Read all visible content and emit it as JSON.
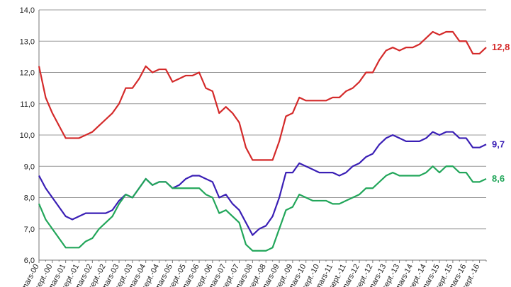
{
  "chart_data": {
    "type": "line",
    "categories": [
      "mars-00",
      null,
      "sept.-00",
      null,
      "mars-01",
      null,
      "sept.-01",
      null,
      "mars-02",
      null,
      "sept.-02",
      null,
      "mars-03",
      null,
      "sept.-03",
      null,
      "mars-04",
      null,
      "sept.-04",
      null,
      "mars-05",
      null,
      "sept.-05",
      null,
      "mars-06",
      null,
      "sept.-06",
      null,
      "mars-07",
      null,
      "sept.-07",
      null,
      "mars-08",
      null,
      "sept.-08",
      null,
      "mars-09",
      null,
      "sept.-09",
      null,
      "mars-10",
      null,
      "sept.-10",
      null,
      "mars-11",
      null,
      "sept.-11",
      null,
      "mars-12",
      null,
      "sept.-12",
      null,
      "mars-13",
      null,
      "sept.-13",
      null,
      "mars-14",
      null,
      "sept.-14",
      null,
      "mars-15",
      null,
      "sept.-15",
      null,
      "mars-16",
      null,
      "sept.-16",
      null
    ],
    "series": [
      {
        "color": "#d42a2a",
        "values": [
          12.2,
          11.2,
          10.7,
          10.3,
          9.9,
          9.9,
          9.9,
          10.0,
          10.1,
          10.3,
          10.5,
          10.7,
          11.0,
          11.5,
          11.5,
          11.8,
          12.2,
          12.0,
          12.1,
          12.1,
          11.7,
          11.8,
          11.9,
          11.9,
          12.0,
          11.5,
          11.4,
          10.7,
          10.9,
          10.7,
          10.4,
          9.6,
          9.2,
          9.2,
          9.2,
          9.2,
          9.8,
          10.6,
          10.7,
          11.2,
          11.1,
          11.1,
          11.1,
          11.1,
          11.2,
          11.2,
          11.4,
          11.5,
          11.7,
          12.0,
          12.0,
          12.4,
          12.7,
          12.8,
          12.7,
          12.8,
          12.8,
          12.9,
          13.1,
          13.3,
          13.2,
          13.3,
          13.3,
          13.0,
          13.0,
          12.6,
          12.6,
          12.8
        ],
        "value_labels": [
          null,
          null,
          null,
          null,
          null,
          null,
          null,
          null,
          null,
          null,
          null,
          null,
          null,
          null,
          null,
          null,
          null,
          null,
          null,
          null,
          null,
          null,
          null,
          null,
          null,
          null,
          null,
          null,
          null,
          null,
          null,
          null,
          null,
          null,
          null,
          null,
          null,
          null,
          null,
          null,
          null,
          null,
          null,
          null,
          null,
          null,
          null,
          null,
          null,
          null,
          null,
          null,
          null,
          null,
          null,
          null,
          null,
          null,
          null,
          null,
          null,
          null,
          null,
          null,
          null,
          null,
          null,
          "12,8"
        ]
      },
      {
        "color": "#3a1fb5",
        "values": [
          8.7,
          8.3,
          8.0,
          7.7,
          7.4,
          7.3,
          7.4,
          7.5,
          7.5,
          7.5,
          7.5,
          7.6,
          7.9,
          8.1,
          8.0,
          8.3,
          8.6,
          8.4,
          8.5,
          8.5,
          8.3,
          8.4,
          8.6,
          8.7,
          8.7,
          8.6,
          8.5,
          8.0,
          8.1,
          7.8,
          7.6,
          7.2,
          6.8,
          7.0,
          7.1,
          7.4,
          8.0,
          8.8,
          8.8,
          9.1,
          9.0,
          8.9,
          8.8,
          8.8,
          8.8,
          8.7,
          8.8,
          9.0,
          9.1,
          9.3,
          9.4,
          9.7,
          9.9,
          10.0,
          9.9,
          9.8,
          9.8,
          9.8,
          9.9,
          10.1,
          10.0,
          10.1,
          10.1,
          9.9,
          9.9,
          9.6,
          9.6,
          9.7
        ],
        "value_labels": [
          null,
          null,
          null,
          null,
          null,
          null,
          null,
          null,
          null,
          null,
          null,
          null,
          null,
          null,
          null,
          null,
          null,
          null,
          null,
          null,
          null,
          null,
          null,
          null,
          null,
          null,
          null,
          null,
          null,
          null,
          null,
          null,
          null,
          null,
          null,
          null,
          null,
          null,
          null,
          null,
          null,
          null,
          null,
          null,
          null,
          null,
          null,
          null,
          null,
          null,
          null,
          null,
          null,
          null,
          null,
          null,
          null,
          null,
          null,
          null,
          null,
          null,
          null,
          null,
          null,
          null,
          null,
          "9,7"
        ]
      },
      {
        "color": "#22a65a",
        "values": [
          7.8,
          7.3,
          7.0,
          6.7,
          6.4,
          6.4,
          6.4,
          6.6,
          6.7,
          7.0,
          7.2,
          7.4,
          7.8,
          8.1,
          8.0,
          8.3,
          8.6,
          8.4,
          8.5,
          8.5,
          8.3,
          8.3,
          8.3,
          8.3,
          8.3,
          8.1,
          8.0,
          7.5,
          7.6,
          7.4,
          7.2,
          6.5,
          6.3,
          6.3,
          6.3,
          6.4,
          7.0,
          7.6,
          7.7,
          8.1,
          8.0,
          7.9,
          7.9,
          7.9,
          7.8,
          7.8,
          7.9,
          8.0,
          8.1,
          8.3,
          8.3,
          8.5,
          8.7,
          8.8,
          8.7,
          8.7,
          8.7,
          8.7,
          8.8,
          9.0,
          8.8,
          9.0,
          9.0,
          8.8,
          8.8,
          8.5,
          8.5,
          8.6
        ],
        "value_labels": [
          null,
          null,
          null,
          null,
          null,
          null,
          null,
          null,
          null,
          null,
          null,
          null,
          null,
          null,
          null,
          null,
          null,
          null,
          null,
          null,
          null,
          null,
          null,
          null,
          null,
          null,
          null,
          null,
          null,
          null,
          null,
          null,
          null,
          null,
          null,
          null,
          null,
          null,
          null,
          null,
          null,
          null,
          null,
          null,
          null,
          null,
          null,
          null,
          null,
          null,
          null,
          null,
          null,
          null,
          null,
          null,
          null,
          null,
          null,
          null,
          null,
          null,
          null,
          null,
          null,
          null,
          null,
          "8,6"
        ]
      }
    ],
    "ylim": [
      6,
      14
    ],
    "yticks": [
      {
        "value": 6,
        "label": "6,0"
      },
      {
        "value": 7,
        "label": "7,0"
      },
      {
        "value": 8,
        "label": "8,0"
      },
      {
        "value": 9,
        "label": "9,0"
      },
      {
        "value": 10,
        "label": "10,0"
      },
      {
        "value": 11,
        "label": "11,0"
      },
      {
        "value": 12,
        "label": "12,0"
      },
      {
        "value": 13,
        "label": "13,0"
      },
      {
        "value": 14,
        "label": "14,0"
      }
    ],
    "grid": true
  }
}
